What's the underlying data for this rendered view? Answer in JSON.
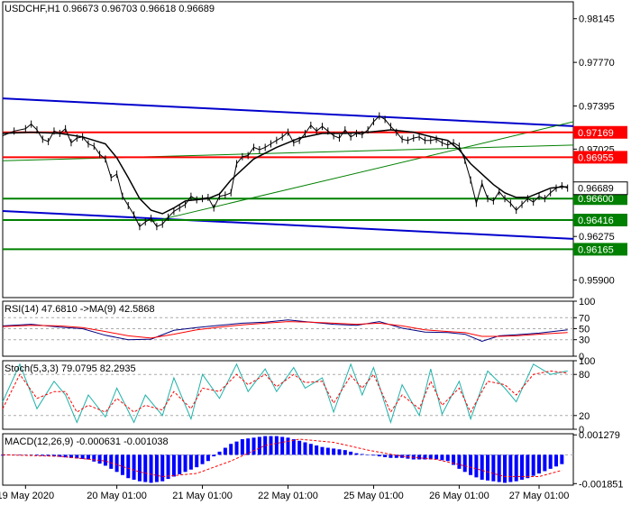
{
  "colors": {
    "background": "#ffffff",
    "frame": "#000000",
    "price_line": "#000000",
    "ma_line": "#000000",
    "channel": "#0000cc",
    "support_resistance_red": "#ff0000",
    "support_resistance_green": "#008000",
    "trend_green": "#008000",
    "rsi": "#000080",
    "rsi_ma": "#ff0000",
    "stoch_main": "#20b2aa",
    "stoch_signal": "#ff0000",
    "macd_hist": "#0000ff",
    "macd_signal": "#ff0000",
    "current_price_box": "#ffffff"
  },
  "chart_data": [
    {
      "type": "line",
      "panel": "main",
      "title": "USDCHF,H1  0.96673 0.96703 0.96618 0.96689",
      "y_ticks": [
        "0.98145",
        "0.97770",
        "0.97395",
        "0.97025",
        "0.96275",
        "0.95900"
      ],
      "ylim": [
        0.9575,
        0.9829
      ],
      "x_ticks": [
        "19 May 2020",
        "20 May 01:00",
        "21 May 01:00",
        "22 May 01:00",
        "25 May 01:00",
        "26 May 01:00",
        "27 May 01:00"
      ],
      "x_range": [
        0,
        100
      ],
      "current_price": "0.96689",
      "levels": [
        {
          "label": "0.97169",
          "value": 0.97169,
          "color": "red"
        },
        {
          "label": "0.96955",
          "value": 0.96955,
          "color": "red"
        },
        {
          "label": "0.96600",
          "value": 0.966,
          "color": "green"
        },
        {
          "label": "0.96416",
          "value": 0.96416,
          "color": "green"
        },
        {
          "label": "0.96165",
          "value": 0.96165,
          "color": "green"
        }
      ],
      "channel_upper": [
        [
          0,
          97.46
        ],
        [
          100,
          97.222
        ]
      ],
      "channel_lower": [
        [
          0,
          96.493
        ],
        [
          100,
          96.254
        ]
      ],
      "trend_line_1": [
        [
          0,
          96.925
        ],
        [
          100,
          97.06
        ]
      ],
      "trend_line_2": [
        [
          26,
          96.4
        ],
        [
          100,
          97.26
        ]
      ],
      "series": [
        {
          "name": "price",
          "x": [
            0,
            2,
            4,
            5,
            6,
            7,
            8,
            9,
            10,
            11,
            12,
            13,
            14,
            15,
            16,
            17,
            18,
            19,
            20,
            21,
            22,
            23,
            24,
            25,
            26,
            27,
            28,
            29,
            30,
            31,
            32,
            33,
            34,
            35,
            36,
            37,
            38,
            39,
            40,
            41,
            42,
            43,
            44,
            45,
            46,
            47,
            48,
            49,
            50,
            51,
            52,
            53,
            54,
            55,
            56,
            57,
            58,
            59,
            60,
            61,
            62,
            63,
            64,
            65,
            66,
            67,
            68,
            69,
            70,
            71,
            72,
            73,
            74,
            75,
            76,
            77,
            78,
            79,
            80,
            81,
            82,
            83,
            84,
            85,
            86,
            87,
            88,
            89,
            90,
            91,
            92,
            93,
            94,
            95,
            96,
            97,
            98,
            99
          ],
          "values": [
            0.9714,
            0.9718,
            0.972,
            0.9724,
            0.9719,
            0.9711,
            0.9709,
            0.9718,
            0.9716,
            0.972,
            0.9708,
            0.9712,
            0.9713,
            0.9707,
            0.9705,
            0.9698,
            0.9694,
            0.9678,
            0.9681,
            0.9662,
            0.9654,
            0.9646,
            0.9636,
            0.964,
            0.9643,
            0.9636,
            0.9638,
            0.9644,
            0.9649,
            0.9652,
            0.9655,
            0.9662,
            0.9659,
            0.966,
            0.9661,
            0.9652,
            0.9662,
            0.9663,
            0.9665,
            0.969,
            0.9696,
            0.9697,
            0.9704,
            0.9702,
            0.9704,
            0.9707,
            0.971,
            0.9713,
            0.9717,
            0.9708,
            0.971,
            0.9716,
            0.9723,
            0.9718,
            0.9722,
            0.9718,
            0.9714,
            0.9712,
            0.9719,
            0.9713,
            0.9716,
            0.9715,
            0.9719,
            0.9726,
            0.9731,
            0.9728,
            0.9722,
            0.9717,
            0.9711,
            0.971,
            0.9712,
            0.9713,
            0.971,
            0.971,
            0.9711,
            0.9708,
            0.9706,
            0.9708,
            0.9705,
            0.9693,
            0.9676,
            0.9656,
            0.9673,
            0.966,
            0.9658,
            0.9666,
            0.966,
            0.9656,
            0.965,
            0.9655,
            0.966,
            0.9657,
            0.9662,
            0.966,
            0.9665,
            0.9669,
            0.9671,
            0.9669
          ]
        },
        {
          "name": "moving-average",
          "x": [
            0,
            5,
            10,
            14,
            18,
            20,
            22,
            24,
            26,
            28,
            30,
            32,
            34,
            36,
            38,
            40,
            44,
            48,
            52,
            56,
            60,
            64,
            68,
            72,
            76,
            78,
            80,
            82,
            84,
            86,
            88,
            90,
            92,
            94,
            96,
            98,
            99
          ],
          "values": [
            0.9716,
            0.9717,
            0.9716,
            0.9713,
            0.9707,
            0.9695,
            0.9678,
            0.966,
            0.965,
            0.9647,
            0.9652,
            0.9658,
            0.9659,
            0.966,
            0.9664,
            0.9676,
            0.9694,
            0.9704,
            0.9712,
            0.9716,
            0.9716,
            0.9717,
            0.9719,
            0.9717,
            0.9712,
            0.971,
            0.9702,
            0.969,
            0.9681,
            0.9672,
            0.9665,
            0.9661,
            0.9661,
            0.9665,
            0.9669,
            0.967,
            0.967
          ]
        }
      ]
    },
    {
      "type": "line",
      "panel": "rsi",
      "title": "RSI(14) 47.6810  ->MA(9) 42.5868",
      "y_ticks": [
        "100",
        "70",
        "50",
        "30",
        "0"
      ],
      "ylim": [
        0,
        100
      ],
      "series": [
        {
          "name": "RSI(14)",
          "x": [
            0,
            5,
            10,
            14,
            18,
            22,
            26,
            30,
            34,
            38,
            42,
            46,
            50,
            54,
            58,
            62,
            66,
            70,
            74,
            78,
            81,
            84,
            87,
            90,
            94,
            99
          ],
          "values": [
            55,
            58,
            53,
            50,
            38,
            30,
            31,
            47,
            52,
            56,
            60,
            62,
            66,
            62,
            58,
            56,
            63,
            51,
            44,
            43,
            40,
            27,
            37,
            39,
            42,
            48
          ]
        },
        {
          "name": "MA(9)",
          "x": [
            0,
            5,
            10,
            14,
            18,
            22,
            26,
            30,
            34,
            38,
            42,
            46,
            50,
            54,
            58,
            62,
            66,
            70,
            74,
            78,
            81,
            84,
            87,
            90,
            94,
            99
          ],
          "values": [
            54,
            56,
            55,
            52,
            45,
            37,
            33,
            40,
            48,
            53,
            57,
            60,
            63,
            62,
            60,
            58,
            60,
            55,
            48,
            45,
            43,
            36,
            36,
            37,
            40,
            43
          ]
        }
      ]
    },
    {
      "type": "line",
      "panel": "stochastic",
      "title": "Stoch(5,3,3) 79.0795 82.2935",
      "y_ticks": [
        "100",
        "80",
        "20",
        "0"
      ],
      "ylim": [
        0,
        100
      ],
      "series": [
        {
          "name": "%K",
          "x": [
            0,
            3,
            6,
            9,
            11,
            13,
            15,
            18,
            20,
            23,
            25,
            28,
            30,
            33,
            35,
            38,
            41,
            43,
            46,
            48,
            51,
            53,
            56,
            58,
            61,
            63,
            65,
            68,
            70,
            73,
            75,
            77,
            80,
            82,
            85,
            88,
            90,
            93,
            96,
            99
          ],
          "values": [
            40,
            95,
            30,
            70,
            50,
            10,
            50,
            18,
            60,
            10,
            50,
            20,
            75,
            15,
            80,
            45,
            95,
            55,
            88,
            55,
            90,
            60,
            75,
            25,
            95,
            50,
            90,
            10,
            65,
            20,
            88,
            22,
            70,
            15,
            85,
            60,
            40,
            95,
            80,
            85
          ]
        },
        {
          "name": "%D",
          "x": [
            0,
            3,
            6,
            9,
            11,
            13,
            15,
            18,
            20,
            23,
            25,
            28,
            30,
            33,
            35,
            38,
            41,
            43,
            46,
            48,
            51,
            53,
            56,
            58,
            61,
            63,
            65,
            68,
            70,
            73,
            75,
            77,
            80,
            82,
            85,
            88,
            90,
            93,
            96,
            99
          ],
          "values": [
            30,
            80,
            45,
            55,
            55,
            25,
            35,
            25,
            45,
            25,
            35,
            28,
            55,
            30,
            60,
            55,
            80,
            65,
            80,
            62,
            80,
            68,
            70,
            38,
            78,
            60,
            80,
            25,
            50,
            30,
            70,
            35,
            60,
            25,
            70,
            65,
            50,
            80,
            85,
            82
          ]
        }
      ]
    },
    {
      "type": "bar",
      "panel": "macd",
      "title": "MACD(12,26,9) -0.000631 -0.001038",
      "y_ticks": [
        "0.001279",
        "-0.001851"
      ],
      "ylim": [
        -0.00195,
        0.00135
      ],
      "series": [
        {
          "name": "MACD(12,26,9)",
          "x": [
            0,
            3,
            6,
            9,
            12,
            15,
            18,
            20,
            22,
            24,
            26,
            28,
            30,
            32,
            34,
            36,
            38,
            40,
            42,
            44,
            46,
            48,
            50,
            52,
            54,
            56,
            58,
            60,
            62,
            64,
            66,
            68,
            70,
            72,
            74,
            76,
            78,
            80,
            82,
            84,
            86,
            88,
            90,
            92,
            94,
            96,
            98
          ],
          "values": [
            -5e-05,
            0.0,
            -5e-05,
            -0.0001,
            -0.0002,
            -0.0003,
            -0.0007,
            -0.0011,
            -0.0015,
            -0.0017,
            -0.0018,
            -0.0017,
            -0.0014,
            -0.0011,
            -0.0008,
            -0.0004,
            0.0002,
            0.0007,
            0.001,
            0.0011,
            0.0012,
            0.0012,
            0.0011,
            0.0009,
            0.0007,
            0.0005,
            0.0004,
            0.0003,
            0.0001,
            0.0,
            -0.0001,
            -0.0002,
            -0.0002,
            -0.0003,
            -0.0003,
            -0.0003,
            -0.0004,
            -0.0009,
            -0.0013,
            -0.0016,
            -0.0017,
            -0.0018,
            -0.0017,
            -0.0015,
            -0.0012,
            -0.0009,
            -0.0006
          ]
        },
        {
          "name": "Signal",
          "x": [
            0,
            10,
            18,
            24,
            28,
            34,
            40,
            46,
            52,
            58,
            64,
            70,
            76,
            82,
            88,
            94,
            98
          ],
          "values": [
            0.0,
            -0.0001,
            -0.0004,
            -0.0011,
            -0.0014,
            -0.0012,
            -0.0004,
            0.0006,
            0.001,
            0.0008,
            0.0003,
            -0.0001,
            -0.0003,
            -0.0008,
            -0.0014,
            -0.0014,
            -0.001
          ]
        }
      ]
    }
  ]
}
